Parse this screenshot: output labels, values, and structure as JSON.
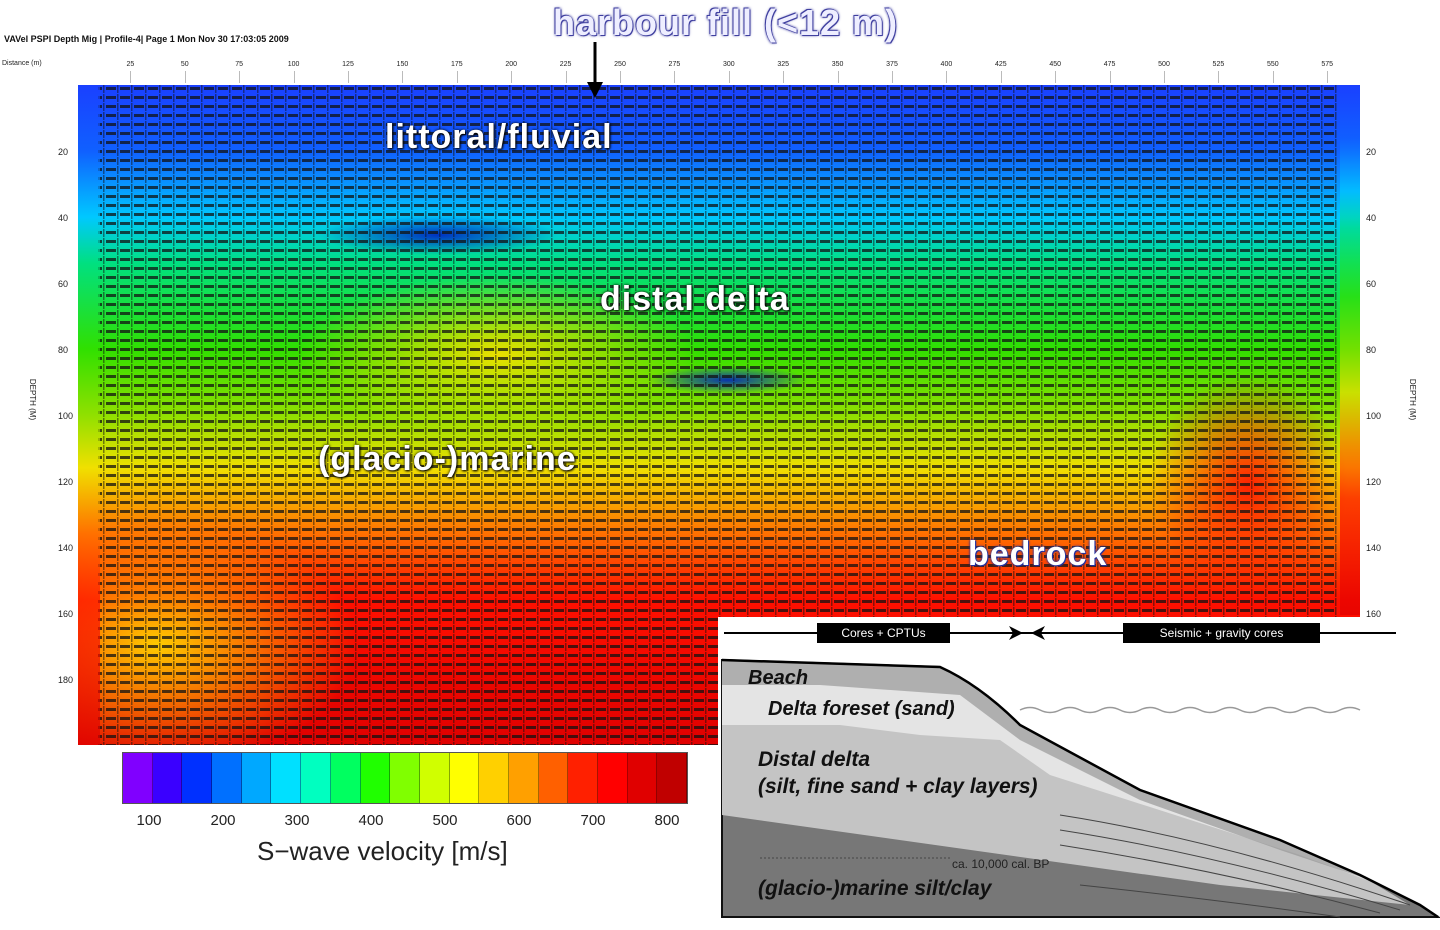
{
  "header": {
    "title": "VAVel PSPI Depth Mig | Profile-4| Page 1 Mon Nov 30 17:03:05 2009",
    "distance_label": "Distance (m)",
    "depth_label": "DEPTH (M)"
  },
  "axes": {
    "distance_ticks": [
      "25",
      "50",
      "75",
      "100",
      "125",
      "150",
      "175",
      "200",
      "225",
      "250",
      "275",
      "300",
      "325",
      "350",
      "375",
      "400",
      "425",
      "450",
      "475",
      "500",
      "525",
      "550",
      "575"
    ],
    "depth_ticks": [
      "20",
      "40",
      "60",
      "80",
      "100",
      "120",
      "140",
      "160",
      "180"
    ]
  },
  "annotations": {
    "harbour_fill": "harbour fill (<12 m)",
    "littoral": "littoral/fluvial",
    "distal_delta": "distal delta",
    "glacio_marine": "(glacio-)marine",
    "bedrock": "bedrock"
  },
  "colorbar": {
    "title": "S−wave velocity [m/s]",
    "ticks": [
      "100",
      "200",
      "300",
      "400",
      "500",
      "600",
      "700",
      "800"
    ],
    "range": [
      50,
      800
    ],
    "bin_width": 50,
    "colors": [
      "#8000ff",
      "#3a00ff",
      "#0030ff",
      "#0070ff",
      "#00a8ff",
      "#00e0ff",
      "#00ffc0",
      "#00ff60",
      "#20ff00",
      "#80ff00",
      "#d0ff00",
      "#ffff00",
      "#ffd000",
      "#ffa000",
      "#ff6000",
      "#ff2000",
      "#ff0000",
      "#e00000",
      "#c00000"
    ]
  },
  "schematic": {
    "bar_left": "Cores + CPTUs",
    "bar_right": "Seismic + gravity cores",
    "beach": "Beach",
    "delta_foreset": "Delta foreset (sand)",
    "distal_delta_line1": "Distal delta",
    "distal_delta_line2": "(silt, fine sand + clay layers)",
    "age": "ca. 10,000 cal. BP",
    "glacio_marine": "(glacio-)marine silt/clay"
  }
}
